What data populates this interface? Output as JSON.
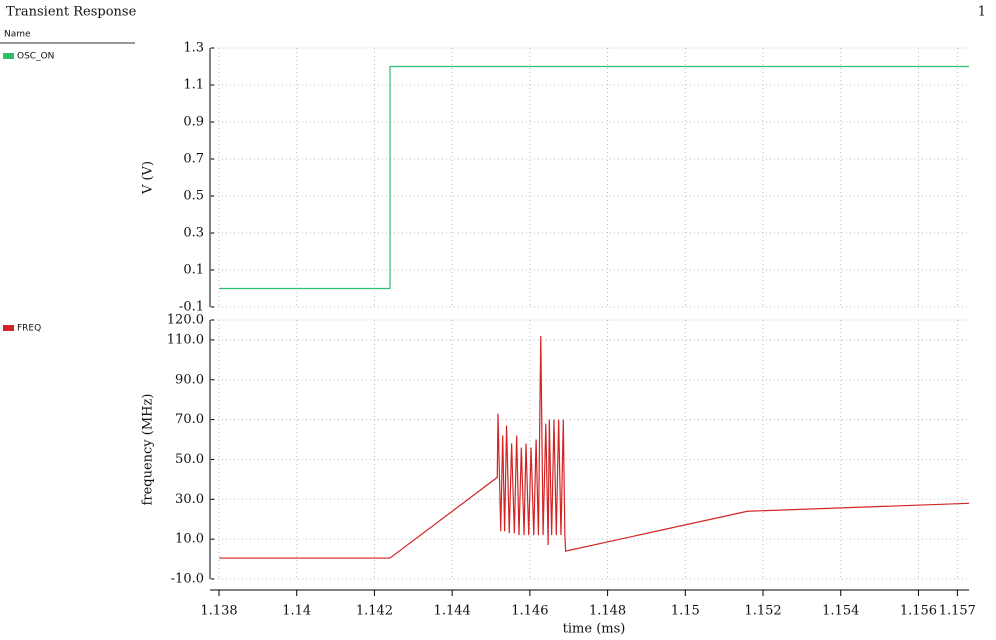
{
  "header": {
    "title": "Transient Response",
    "page": "1",
    "legend_header": "Name"
  },
  "chart_data": [
    {
      "type": "line",
      "ylabel": "V (V)",
      "xlim": [
        1.138,
        1.1573
      ],
      "xticks": [
        1.138,
        1.14,
        1.142,
        1.144,
        1.146,
        1.148,
        1.15,
        1.152,
        1.154,
        1.156,
        1.157
      ],
      "ylim": [
        -0.1,
        1.3
      ],
      "yticks": [
        -0.1,
        0.1,
        0.3,
        0.5,
        0.7,
        0.9,
        1.1,
        1.3
      ],
      "grid": true,
      "x": [
        1.138,
        1.1424,
        1.1424,
        1.1573
      ],
      "series": [
        {
          "name": "OSC_ON",
          "color": "#2dbf6e",
          "values": [
            0,
            0,
            1.2,
            1.2
          ]
        }
      ]
    },
    {
      "type": "line",
      "ylabel": "frequency (MHz)",
      "xlabel": "time (ms)",
      "xlim": [
        1.138,
        1.1573
      ],
      "xticks": [
        1.138,
        1.14,
        1.142,
        1.144,
        1.146,
        1.148,
        1.15,
        1.152,
        1.154,
        1.156,
        1.157
      ],
      "ylim": [
        -10,
        120
      ],
      "yticks": [
        {
          "value": -10,
          "label": "-10.0"
        },
        {
          "value": 10,
          "label": "10.0"
        },
        {
          "value": 30,
          "label": "30.0"
        },
        {
          "value": 50,
          "label": "50.0"
        },
        {
          "value": 70,
          "label": "70.0"
        },
        {
          "value": 90,
          "label": "90.0"
        },
        {
          "value": 110,
          "label": "110.0"
        },
        {
          "value": 120,
          "label": "120.0"
        }
      ],
      "grid": true,
      "x": [
        1.138,
        1.1424,
        1.14516,
        1.14518,
        1.14525,
        1.1453,
        1.14535,
        1.1454,
        1.14547,
        1.14553,
        1.1456,
        1.14566,
        1.14572,
        1.14578,
        1.14585,
        1.1459,
        1.14597,
        1.14603,
        1.1461,
        1.14616,
        1.14622,
        1.14628,
        1.14634,
        1.14641,
        1.14647,
        1.1465,
        1.14656,
        1.14662,
        1.14668,
        1.14674,
        1.1468,
        1.14686,
        1.1469,
        1.14692,
        1.1516,
        1.1573
      ],
      "series": [
        {
          "name": "FREQ",
          "color": "#d42323",
          "values": [
            0.5,
            0.5,
            41,
            73,
            14,
            62,
            14,
            67,
            13,
            58,
            13,
            62,
            12,
            56,
            12,
            58,
            12,
            56,
            12,
            60,
            12,
            112,
            12,
            68,
            7,
            70,
            12,
            70,
            12,
            70,
            12,
            70,
            12,
            4,
            24,
            28
          ]
        }
      ]
    }
  ]
}
